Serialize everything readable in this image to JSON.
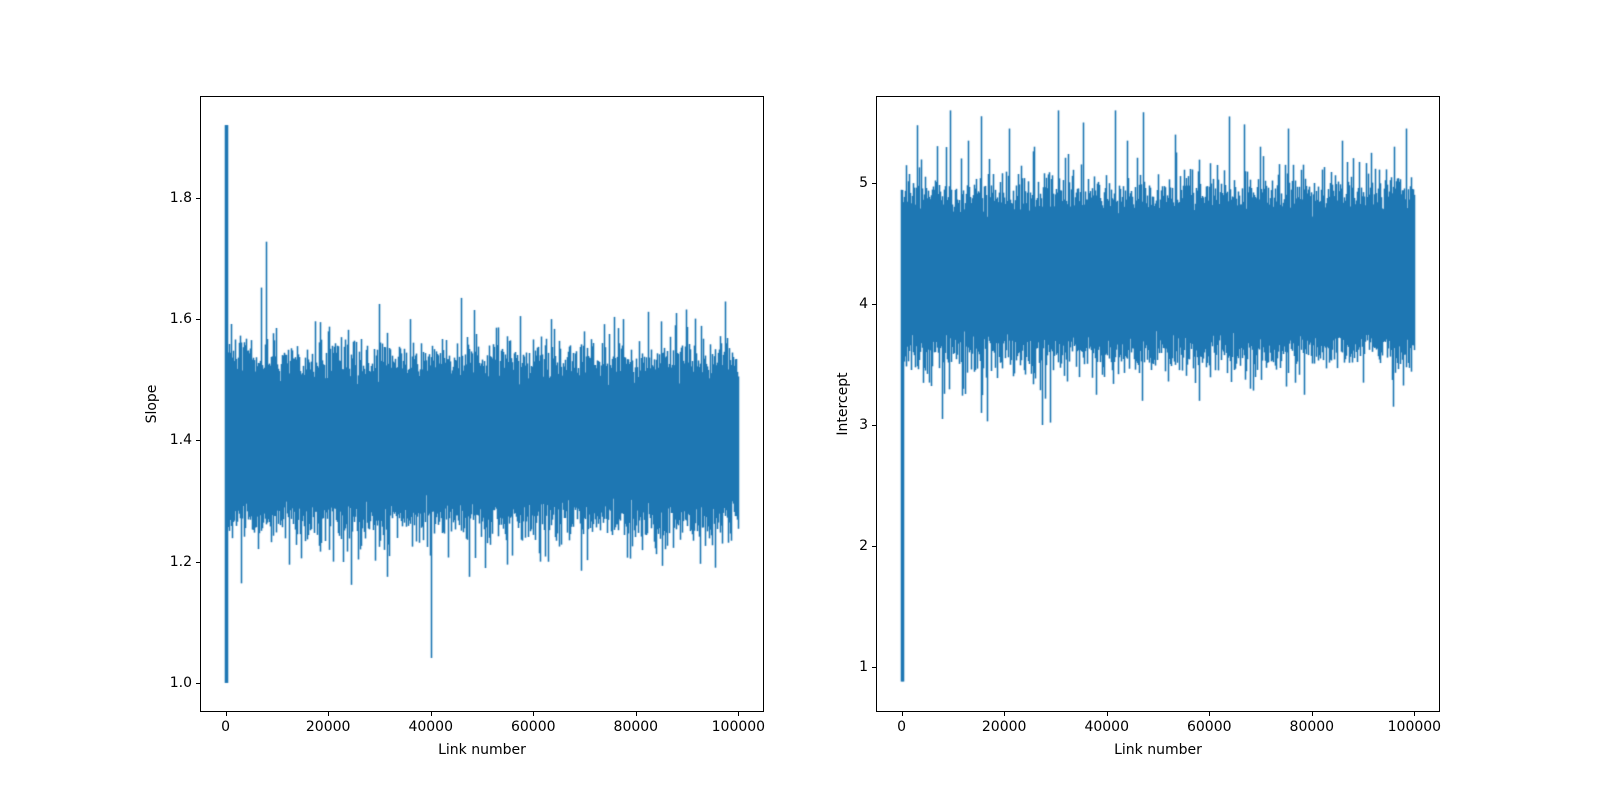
{
  "figure": {
    "background": "#ffffff",
    "frame_color": "#000000",
    "text_color": "#000000",
    "trace_color": "#1f77b4"
  },
  "chart_data": [
    {
      "type": "line",
      "id": "slope-trace",
      "title": "",
      "xlabel": "Link number",
      "ylabel": "Slope",
      "x_ticks": [
        0,
        20000,
        40000,
        60000,
        80000,
        100000
      ],
      "x_tick_labels": [
        "0",
        "20000",
        "40000",
        "60000",
        "80000",
        "100000"
      ],
      "y_ticks": [
        1.0,
        1.2,
        1.4,
        1.6,
        1.8
      ],
      "y_tick_labels": [
        "1.0",
        "1.2",
        "1.4",
        "1.6",
        "1.8"
      ],
      "xlim": [
        -5000,
        105000
      ],
      "ylim": [
        0.952,
        1.968
      ],
      "grid": false,
      "legend": null,
      "n_points": 100000,
      "noise": {
        "mean": 1.4,
        "sigma": 0.05,
        "tail_prob": 0.001,
        "tail_scale": 1.5,
        "clip": [
          1.0,
          1.92
        ]
      },
      "typical_band": [
        1.28,
        1.55
      ],
      "observed_min": 1.0,
      "observed_max": 1.92,
      "burn_in": {
        "x_range": [
          0,
          300
        ],
        "value_range": [
          1.0,
          1.92
        ]
      },
      "notable_points": [
        {
          "x": 7000,
          "y": 1.652
        },
        {
          "x": 18500,
          "y": 1.595
        },
        {
          "x": 30000,
          "y": 1.625
        },
        {
          "x": 36000,
          "y": 1.6
        },
        {
          "x": 46000,
          "y": 1.635
        },
        {
          "x": 48500,
          "y": 1.615
        },
        {
          "x": 57500,
          "y": 1.605
        },
        {
          "x": 63500,
          "y": 1.6
        },
        {
          "x": 77500,
          "y": 1.6
        },
        {
          "x": 88000,
          "y": 1.61
        },
        {
          "x": 12500,
          "y": 1.195
        },
        {
          "x": 21000,
          "y": 1.2
        },
        {
          "x": 31500,
          "y": 1.175
        },
        {
          "x": 40000,
          "y": 1.21
        },
        {
          "x": 47500,
          "y": 1.175
        },
        {
          "x": 56000,
          "y": 1.21
        },
        {
          "x": 61500,
          "y": 1.2
        },
        {
          "x": 69500,
          "y": 1.185
        },
        {
          "x": 79000,
          "y": 1.205
        },
        {
          "x": 95500,
          "y": 1.19
        }
      ],
      "seed": 1337
    },
    {
      "type": "line",
      "id": "intercept-trace",
      "title": "",
      "xlabel": "Link number",
      "ylabel": "Intercept",
      "x_ticks": [
        0,
        20000,
        40000,
        60000,
        80000,
        100000
      ],
      "x_tick_labels": [
        "0",
        "20000",
        "40000",
        "60000",
        "80000",
        "100000"
      ],
      "y_ticks": [
        1,
        2,
        3,
        4,
        5
      ],
      "y_tick_labels": [
        "1",
        "2",
        "3",
        "4",
        "5"
      ],
      "xlim": [
        -5000,
        105000
      ],
      "ylim": [
        0.628,
        5.719
      ],
      "grid": false,
      "legend": null,
      "n_points": 100000,
      "noise": {
        "mean": 4.25,
        "sigma": 0.25,
        "tail_prob": 0.001,
        "tail_scale": 1.5,
        "clip": [
          0.88,
          5.6
        ]
      },
      "typical_band": [
        3.6,
        4.9
      ],
      "observed_min": 0.88,
      "observed_max": 5.6,
      "burn_in": {
        "x_range": [
          0,
          300
        ],
        "value_range": [
          0.88,
          4.6
        ]
      },
      "notable_points": [
        {
          "x": 13000,
          "y": 5.35
        },
        {
          "x": 21000,
          "y": 5.45
        },
        {
          "x": 26000,
          "y": 5.3
        },
        {
          "x": 30500,
          "y": 5.6
        },
        {
          "x": 35500,
          "y": 5.5
        },
        {
          "x": 44000,
          "y": 5.35
        },
        {
          "x": 53500,
          "y": 5.4
        },
        {
          "x": 64000,
          "y": 5.55
        },
        {
          "x": 70000,
          "y": 5.3
        },
        {
          "x": 75500,
          "y": 5.45
        },
        {
          "x": 86000,
          "y": 5.35
        },
        {
          "x": 98500,
          "y": 5.45
        },
        {
          "x": 8000,
          "y": 3.05
        },
        {
          "x": 15500,
          "y": 3.1
        },
        {
          "x": 16800,
          "y": 3.03
        },
        {
          "x": 27500,
          "y": 3.0
        },
        {
          "x": 29000,
          "y": 3.02
        },
        {
          "x": 38000,
          "y": 3.25
        },
        {
          "x": 47000,
          "y": 3.2
        },
        {
          "x": 58000,
          "y": 3.2
        },
        {
          "x": 68000,
          "y": 3.3
        },
        {
          "x": 78500,
          "y": 3.25
        },
        {
          "x": 90000,
          "y": 3.35
        }
      ],
      "seed": 2024
    }
  ]
}
